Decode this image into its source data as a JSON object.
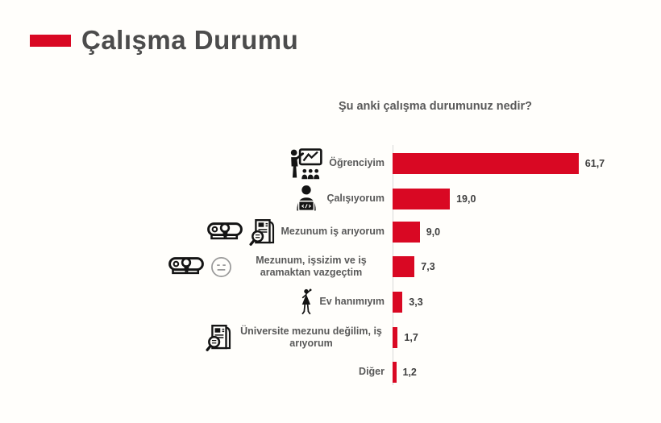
{
  "page": {
    "title": "Çalışma Durumu",
    "background_color": "#fffefb",
    "accent_color": "#d90823",
    "title_color": "#4c4c4c"
  },
  "chart_data": {
    "type": "bar",
    "orientation": "horizontal",
    "title": "Şu anki çalışma durumunuz nedir?",
    "categories": [
      "Öğrenciyim",
      "Çalışıyorum",
      "Mezunum iş arıyorum",
      "Mezunum, işsizim ve iş aramaktan vazgeçtim",
      "Ev hanımıyım",
      "Üniversite mezunu değilim, iş arıyorum",
      "Diğer"
    ],
    "values": [
      61.7,
      19.0,
      9.0,
      7.3,
      3.3,
      1.7,
      1.2
    ],
    "value_labels": [
      "61,7",
      "19,0",
      "9,0",
      "7,3",
      "3,3",
      "1,7",
      "1,2"
    ],
    "icons": [
      [
        "presentation-icon"
      ],
      [
        "person-laptop-icon"
      ],
      [
        "diploma-icon",
        "news-search-icon"
      ],
      [
        "diploma-icon",
        "neutral-face-icon"
      ],
      [
        "woman-icon"
      ],
      [
        "news-search-icon"
      ],
      []
    ],
    "bar_color": "#d90823",
    "value_label_color": "#3f3f3f",
    "category_label_color": "#595959",
    "axis_line_color": "#d9d9d9",
    "xlim": [
      0,
      65
    ],
    "grid": false,
    "legend": false
  }
}
